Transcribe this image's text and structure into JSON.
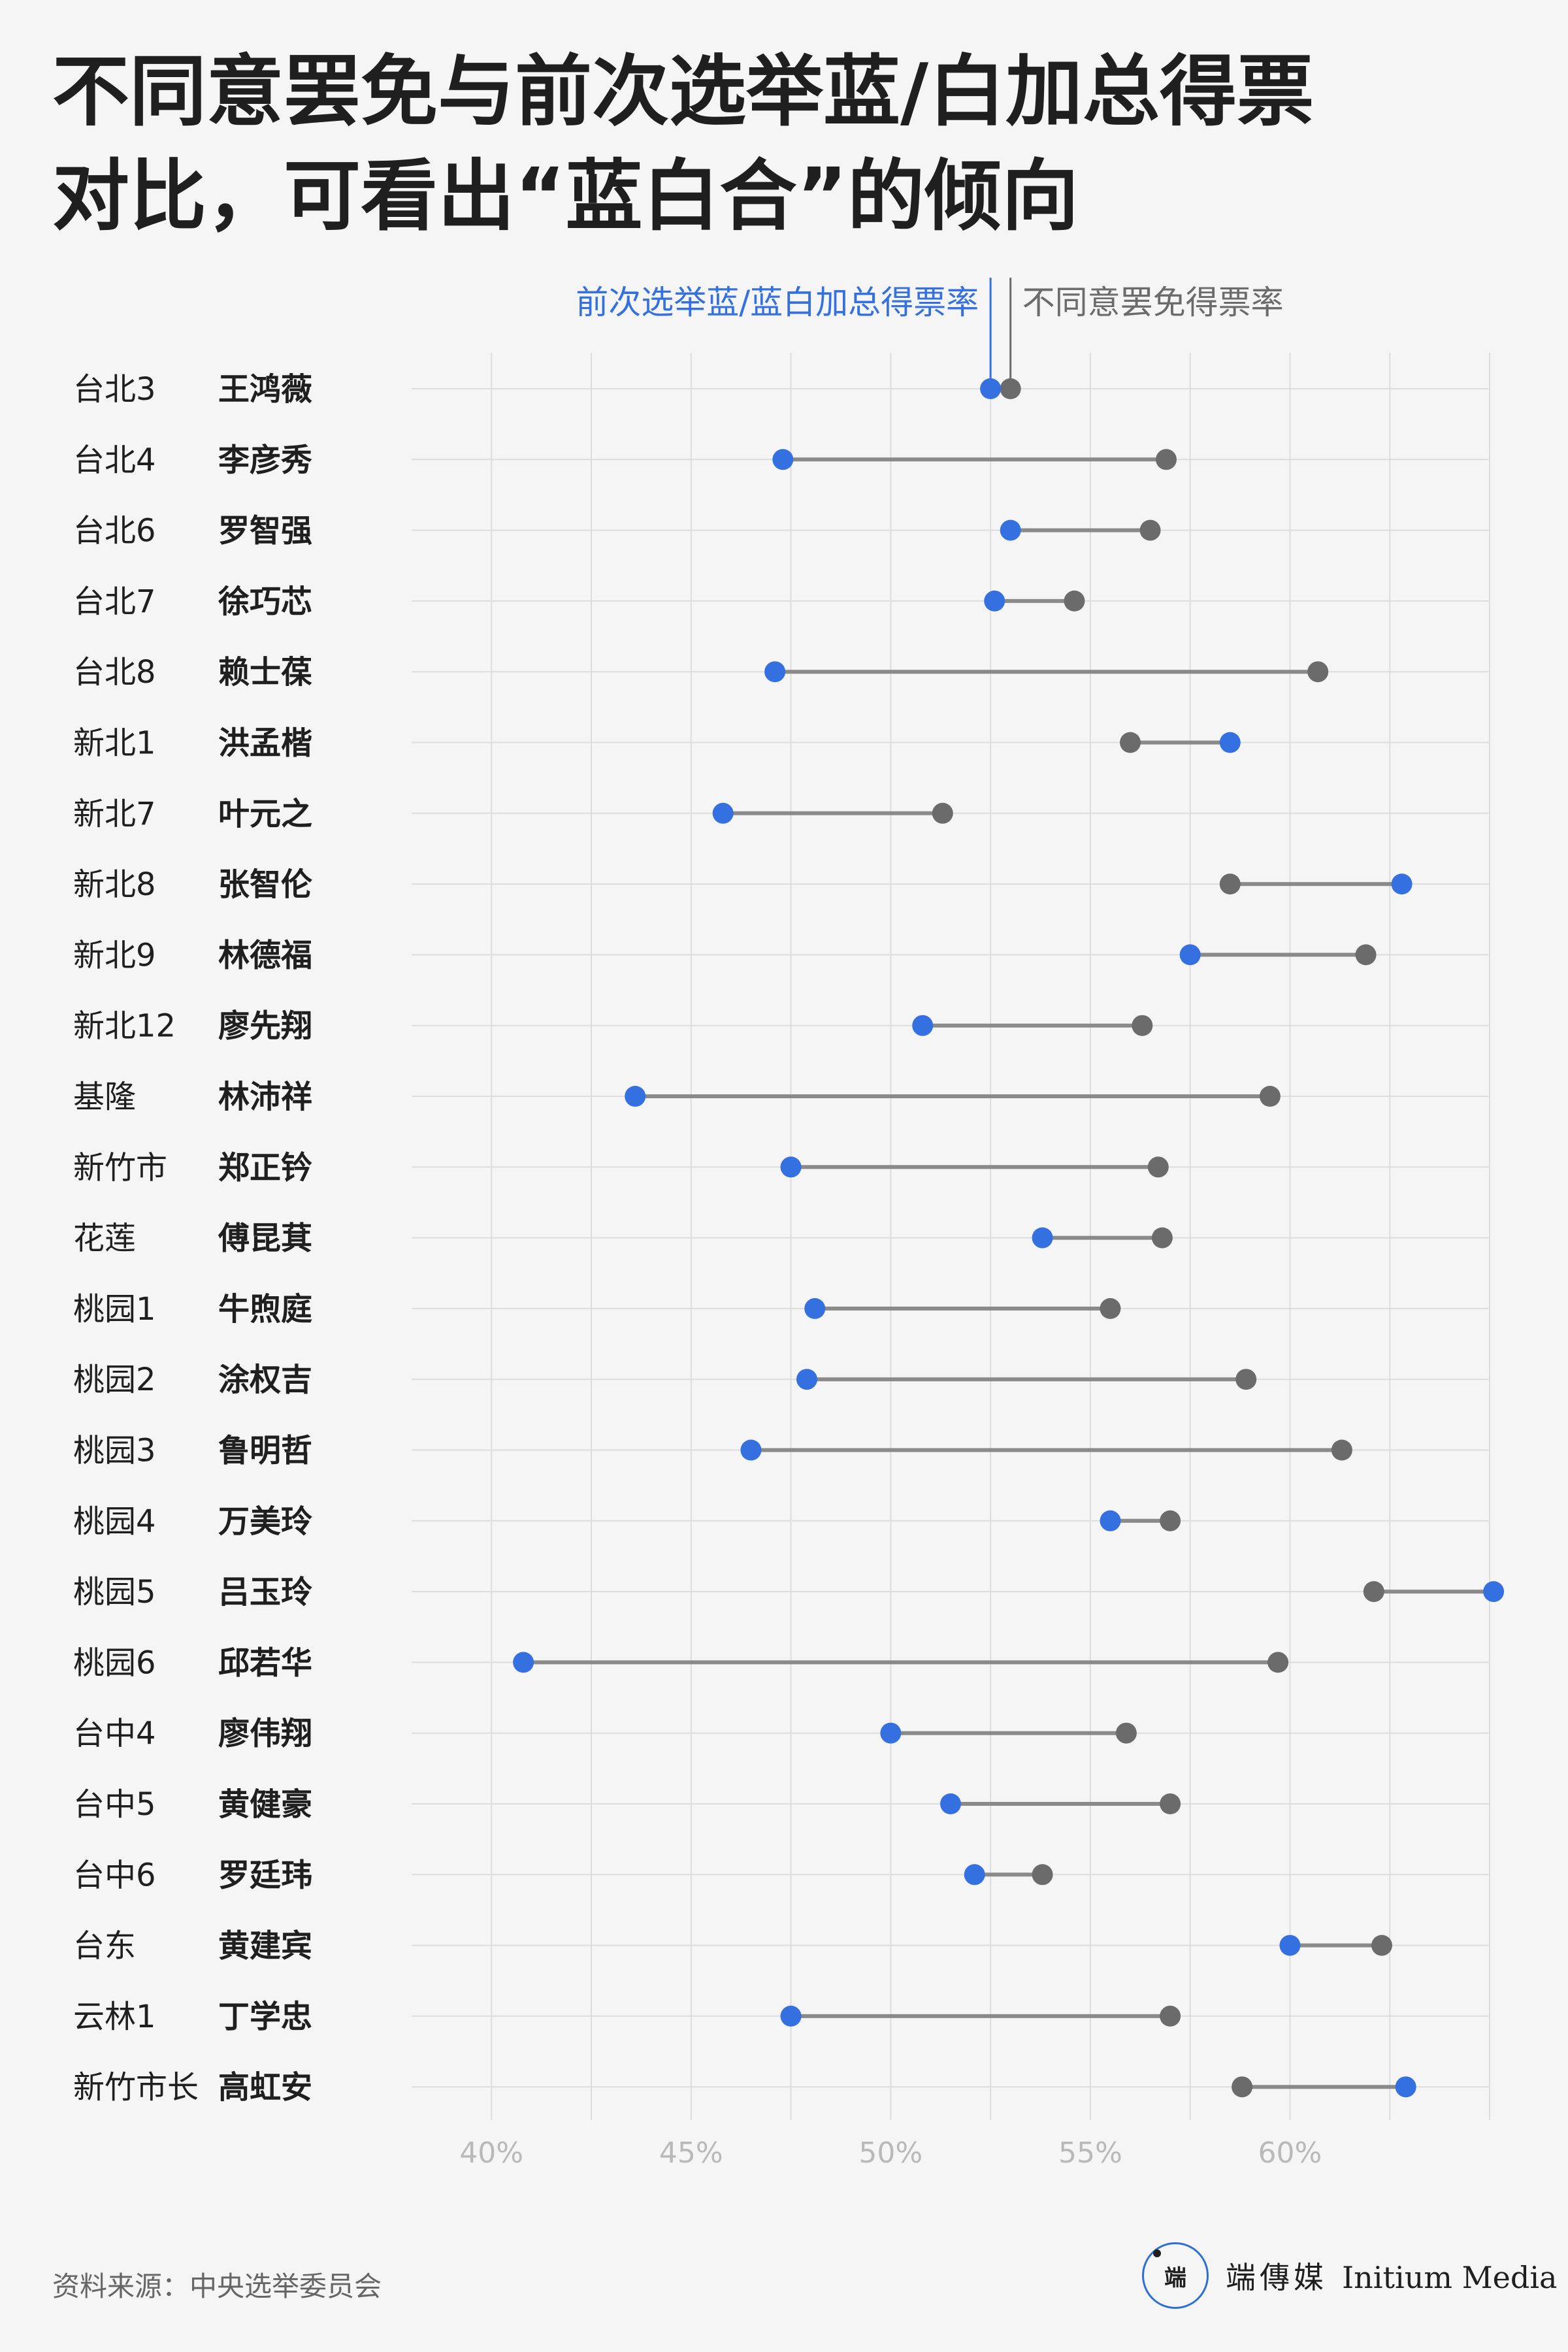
{
  "title_lines": [
    "不同意罢免与前次选举蓝/白加总得票",
    "对比，可看出“蓝白合”的倾向"
  ],
  "source": "资料来源：中央选举委员会",
  "logo": {
    "mark": "端",
    "name_zh": "端傳媒",
    "name_en": "Initium Media",
    "icon": "initium-logo-icon"
  },
  "colors": {
    "blue": "#3570e0",
    "gray": "#6b6b6b",
    "line": "#8a8a8a",
    "grid": "#dddddd",
    "tick": "#b9b9b9"
  },
  "chart_data": {
    "type": "dumbbell",
    "xlim": [
      38,
      65
    ],
    "x_ticks": [
      40,
      45,
      50,
      55,
      60
    ],
    "x_tick_labels": [
      "40%",
      "45%",
      "50%",
      "55%",
      "60%"
    ],
    "grid": true,
    "series": [
      {
        "name": "前次选举蓝/蓝白加总得票率",
        "key": "prev"
      },
      {
        "name": "不同意罢免得票率",
        "key": "disagree"
      }
    ],
    "rows": [
      {
        "district": "台北3",
        "name": "王鸿薇",
        "prev": 52.5,
        "disagree": 53.0
      },
      {
        "district": "台北4",
        "name": "李彦秀",
        "prev": 47.3,
        "disagree": 56.9
      },
      {
        "district": "台北6",
        "name": "罗智强",
        "prev": 53.0,
        "disagree": 56.5
      },
      {
        "district": "台北7",
        "name": "徐巧芯",
        "prev": 52.6,
        "disagree": 54.6
      },
      {
        "district": "台北8",
        "name": "赖士葆",
        "prev": 47.1,
        "disagree": 60.7
      },
      {
        "district": "新北1",
        "name": "洪孟楷",
        "prev": 58.5,
        "disagree": 56.0
      },
      {
        "district": "新北7",
        "name": "叶元之",
        "prev": 45.8,
        "disagree": 51.3
      },
      {
        "district": "新北8",
        "name": "张智伦",
        "prev": 62.8,
        "disagree": 58.5
      },
      {
        "district": "新北9",
        "name": "林德福",
        "prev": 57.5,
        "disagree": 61.9
      },
      {
        "district": "新北12",
        "name": "廖先翔",
        "prev": 50.8,
        "disagree": 56.3
      },
      {
        "district": "基隆",
        "name": "林沛祥",
        "prev": 43.6,
        "disagree": 59.5
      },
      {
        "district": "新竹市",
        "name": "郑正钤",
        "prev": 47.5,
        "disagree": 56.7
      },
      {
        "district": "花莲",
        "name": "傅昆萁",
        "prev": 53.8,
        "disagree": 56.8
      },
      {
        "district": "桃园1",
        "name": "牛煦庭",
        "prev": 48.1,
        "disagree": 55.5
      },
      {
        "district": "桃园2",
        "name": "涂权吉",
        "prev": 47.9,
        "disagree": 58.9
      },
      {
        "district": "桃园3",
        "name": "鲁明哲",
        "prev": 46.5,
        "disagree": 61.3
      },
      {
        "district": "桃园4",
        "name": "万美玲",
        "prev": 55.5,
        "disagree": 57.0
      },
      {
        "district": "桃园5",
        "name": "吕玉玲",
        "prev": 65.1,
        "disagree": 62.1
      },
      {
        "district": "桃园6",
        "name": "邱若华",
        "prev": 40.8,
        "disagree": 59.7
      },
      {
        "district": "台中4",
        "name": "廖伟翔",
        "prev": 50.0,
        "disagree": 55.9
      },
      {
        "district": "台中5",
        "name": "黄健豪",
        "prev": 51.5,
        "disagree": 57.0
      },
      {
        "district": "台中6",
        "name": "罗廷玮",
        "prev": 52.1,
        "disagree": 53.8
      },
      {
        "district": "台东",
        "name": "黄建宾",
        "prev": 60.0,
        "disagree": 62.3
      },
      {
        "district": "云林1",
        "name": "丁学忠",
        "prev": 47.5,
        "disagree": 57.0
      },
      {
        "district": "新竹市长",
        "name": "高虹安",
        "prev": 62.9,
        "disagree": 58.8
      }
    ]
  }
}
